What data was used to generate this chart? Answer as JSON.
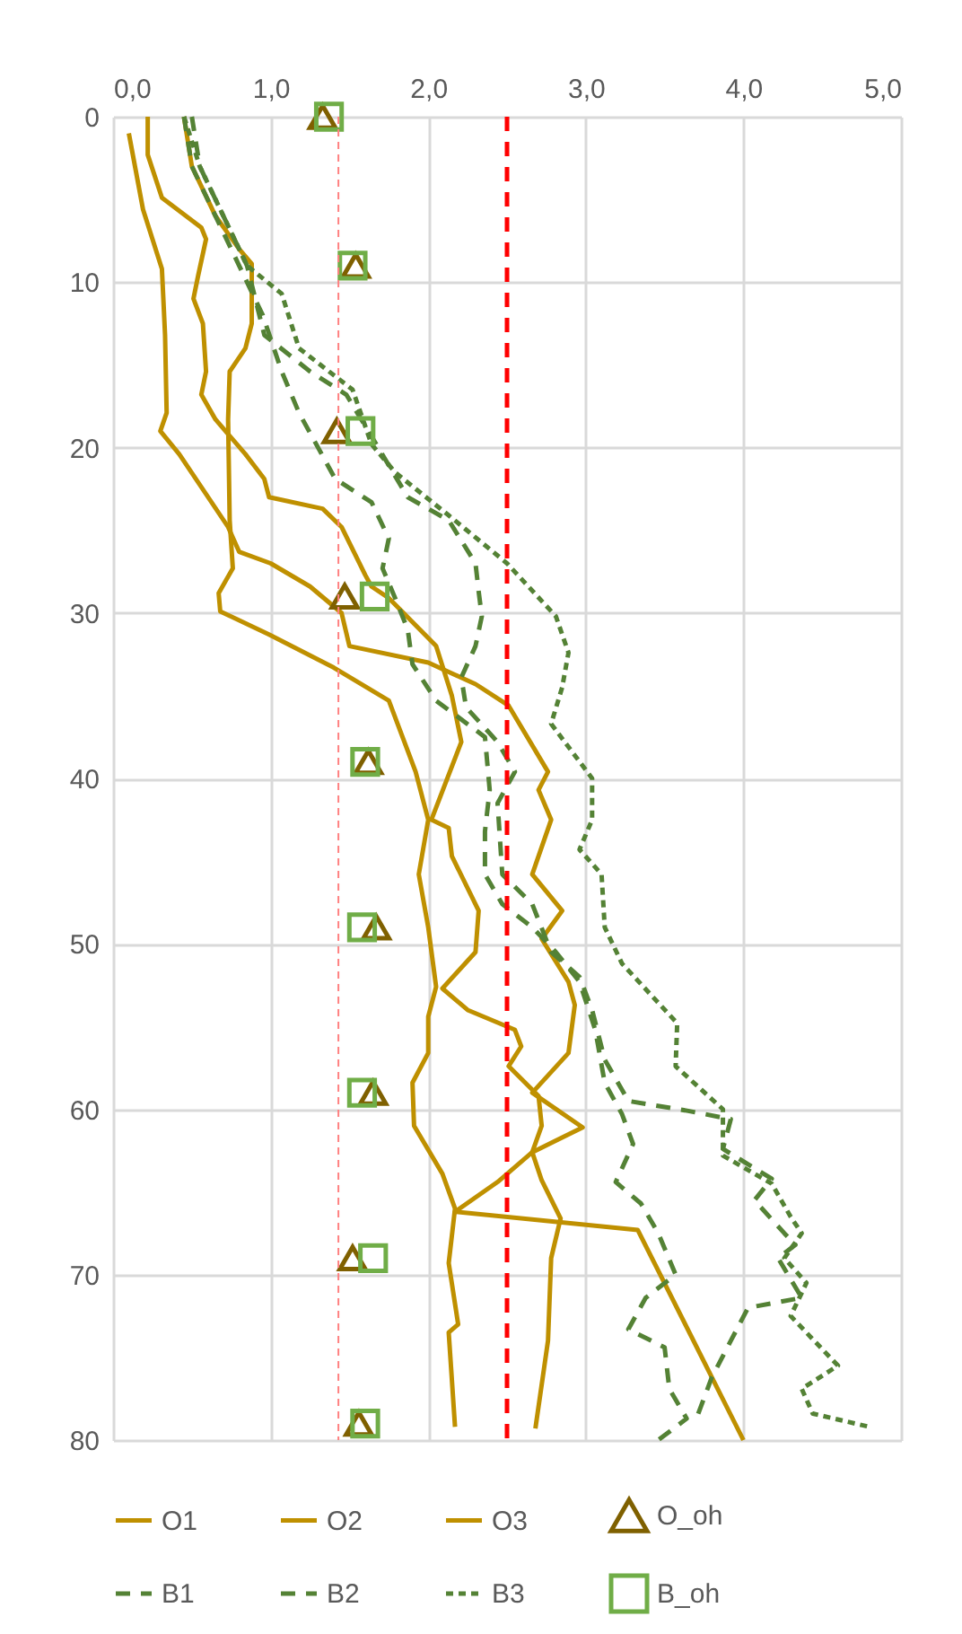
{
  "chart_data": {
    "type": "line",
    "xlim": [
      0,
      5
    ],
    "xticks": [
      {
        "value": 0,
        "label": "0,0"
      },
      {
        "value": 1,
        "label": "1,0"
      },
      {
        "value": 2,
        "label": "2,0"
      },
      {
        "value": 3,
        "label": "3,0"
      },
      {
        "value": 4,
        "label": "4,0"
      },
      {
        "value": 5,
        "label": "5,0"
      }
    ],
    "ylim": [
      80,
      0
    ],
    "yticks": [
      0,
      10,
      20,
      30,
      40,
      50,
      60,
      70,
      80
    ],
    "grid": true,
    "legend": "bottom",
    "ref_lines": [
      {
        "axis": "x",
        "value": 2.5,
        "color": "#ff0000",
        "line_style": "dashed"
      },
      {
        "axis": "x",
        "value": 1.43,
        "color": "#ff8080",
        "line_style": "dotted"
      }
    ],
    "series": [
      {
        "name": "O1",
        "color": "#bf9000",
        "line_style": "solid",
        "x": [
          0.1,
          0.19,
          0.31,
          0.33,
          0.34,
          0.3,
          0.42,
          0.73,
          0.8,
          1.0,
          1.25,
          1.45,
          1.5,
          2.0,
          2.3,
          2.51,
          2.76,
          2.7,
          2.78,
          2.66,
          2.85,
          2.72,
          2.89,
          2.93,
          2.89,
          2.66,
          2.98,
          2.66,
          2.44,
          2.17,
          3.33,
          4.0
        ],
        "values": [
          1,
          5.6,
          9.2,
          13.2,
          17.9,
          19,
          20.4,
          24.8,
          26.3,
          27,
          28.4,
          30,
          32,
          33,
          34.3,
          35.6,
          39.6,
          40.7,
          42.5,
          45.8,
          48,
          49.7,
          52.3,
          53.7,
          56.6,
          59,
          61.1,
          62.6,
          64.4,
          66.2,
          67.3,
          80
        ]
      },
      {
        "name": "O2",
        "color": "#bf9000",
        "line_style": "solid",
        "x": [
          0.22,
          0.22,
          0.31,
          0.56,
          0.59,
          0.54,
          0.51,
          0.57,
          0.59,
          0.56,
          0.65,
          0.84,
          0.96,
          0.99,
          1.33,
          1.45,
          1.6,
          1.64,
          1.75,
          2.05,
          2.15,
          2.21,
          2.02,
          2.13,
          2.15,
          2.32,
          2.3,
          2.09,
          2.25,
          2.55,
          2.59,
          2.51,
          2.7,
          2.72,
          2.66,
          2.72,
          2.84,
          2.78,
          2.76,
          2.68
        ],
        "values": [
          0,
          2.3,
          4.9,
          6.7,
          7.4,
          9.6,
          11,
          12.5,
          15.4,
          16.8,
          18.3,
          20.4,
          21.9,
          23,
          23.7,
          24.8,
          27.7,
          28.4,
          29.1,
          32,
          35,
          37.8,
          42.5,
          43,
          44.7,
          48,
          50.5,
          52.7,
          54,
          55.2,
          56.2,
          57.4,
          59.2,
          61,
          62.6,
          64.3,
          66.6,
          69,
          74,
          79.3
        ]
      },
      {
        "name": "O3",
        "color": "#bf9000",
        "line_style": "solid",
        "x": [
          0.45,
          0.5,
          0.65,
          0.8,
          0.88,
          0.88,
          0.84,
          0.74,
          0.73,
          0.74,
          0.76,
          0.67,
          0.68,
          0.99,
          1.4,
          1.75,
          1.92,
          2.0,
          1.94,
          2.0,
          2.05,
          2.0,
          2.0,
          1.9,
          1.91,
          2.09,
          2.17,
          2.13,
          2.19,
          2.13,
          2.17
        ],
        "values": [
          0,
          3,
          6,
          8,
          8.9,
          12.5,
          14,
          15.4,
          18.3,
          24.4,
          27.3,
          28.8,
          29.9,
          31.3,
          33.3,
          35.3,
          39.6,
          42.5,
          45.8,
          49,
          52.6,
          54.4,
          56.6,
          58.4,
          61,
          63.9,
          66,
          69.3,
          73,
          73.5,
          79.2
        ]
      },
      {
        "name": "O_oh",
        "type": "scatter",
        "color": "#7f6000",
        "marker": "triangle",
        "x": [
          1.33,
          1.54,
          1.42,
          1.47,
          1.62,
          1.67,
          1.65,
          1.52,
          1.56
        ],
        "values": [
          0,
          9,
          19,
          29,
          39,
          49,
          59,
          69,
          79
        ]
      },
      {
        "name": "B1",
        "color": "#548235",
        "line_style": "dashed",
        "x": [
          0.45,
          0.5,
          0.65,
          0.8,
          0.95,
          1.07,
          1.18,
          1.41,
          1.64,
          1.75,
          1.71,
          1.79,
          1.87,
          1.9,
          2.05,
          2.36,
          2.39,
          2.36,
          2.36,
          2.47,
          2.66,
          2.81,
          2.96,
          3.06,
          3.12,
          3.23,
          3.3,
          3.19,
          3.35,
          3.46,
          3.57,
          3.38,
          3.27,
          3.5,
          3.53,
          3.64,
          3.46
        ],
        "values": [
          0,
          3,
          6,
          9,
          12,
          15.4,
          17.9,
          21.9,
          23.3,
          25.5,
          27.3,
          29.1,
          31,
          33.1,
          35.3,
          37.5,
          40.7,
          43.2,
          45.8,
          47.6,
          49,
          50.5,
          52.3,
          55.2,
          58.4,
          60.3,
          62.1,
          64.4,
          65.7,
          67.5,
          70,
          71.4,
          73.3,
          74.4,
          76.9,
          78.7,
          80
        ]
      },
      {
        "name": "B2",
        "color": "#548235",
        "line_style": "dashed",
        "x": [
          0.5,
          0.55,
          0.7,
          0.85,
          0.96,
          1.25,
          1.48,
          1.67,
          1.87,
          2.13,
          2.3,
          2.32,
          2.34,
          2.3,
          2.21,
          2.24,
          2.44,
          2.55,
          2.44,
          2.47,
          2.66,
          2.78,
          2.96,
          3.04,
          3.12,
          3.27,
          3.65,
          3.92,
          3.87,
          4.18,
          4.07,
          4.26,
          4.33,
          4.22,
          4.37,
          4.03,
          3.92,
          3.8,
          3.69
        ],
        "values": [
          0,
          3,
          6,
          9,
          13.2,
          15.4,
          16.8,
          19.8,
          23,
          24.4,
          27,
          28.7,
          30.2,
          32,
          33.9,
          35.7,
          37.8,
          39.6,
          41.5,
          45.8,
          47.6,
          50.5,
          52,
          54,
          57,
          59.5,
          60.1,
          60.6,
          62.4,
          64.2,
          65.5,
          67.5,
          68.2,
          69,
          71.4,
          72,
          74,
          76.2,
          79
        ]
      },
      {
        "name": "B3",
        "color": "#548235",
        "line_style": "dotted",
        "x": [
          0.45,
          0.55,
          0.7,
          0.85,
          1.07,
          1.18,
          1.52,
          1.64,
          1.79,
          2.13,
          2.5,
          2.81,
          2.89,
          2.85,
          2.78,
          3.04,
          3.04,
          2.96,
          3.1,
          3.12,
          3.23,
          3.58,
          3.57,
          3.87,
          3.87,
          4.18,
          4.3,
          4.37,
          4.26,
          4.4,
          4.3,
          4.6,
          4.37,
          4.44,
          4.8
        ],
        "values": [
          0,
          3,
          6,
          9,
          10.7,
          14,
          16.5,
          19.8,
          21.5,
          24.1,
          27,
          30.2,
          32.4,
          34.5,
          36.7,
          40,
          42.5,
          44.3,
          45.8,
          49,
          51.2,
          54.8,
          57.4,
          60,
          62.8,
          64.5,
          66.5,
          67.5,
          69,
          70.5,
          72.5,
          75.5,
          76.9,
          78.4,
          79.2
        ]
      },
      {
        "name": "B_oh",
        "type": "scatter",
        "color": "#70ad47",
        "marker": "square",
        "x": [
          1.37,
          1.52,
          1.57,
          1.66,
          1.6,
          1.58,
          1.58,
          1.65,
          1.6
        ],
        "values": [
          0,
          9,
          19,
          29,
          39,
          49,
          59,
          69,
          79
        ]
      }
    ]
  }
}
